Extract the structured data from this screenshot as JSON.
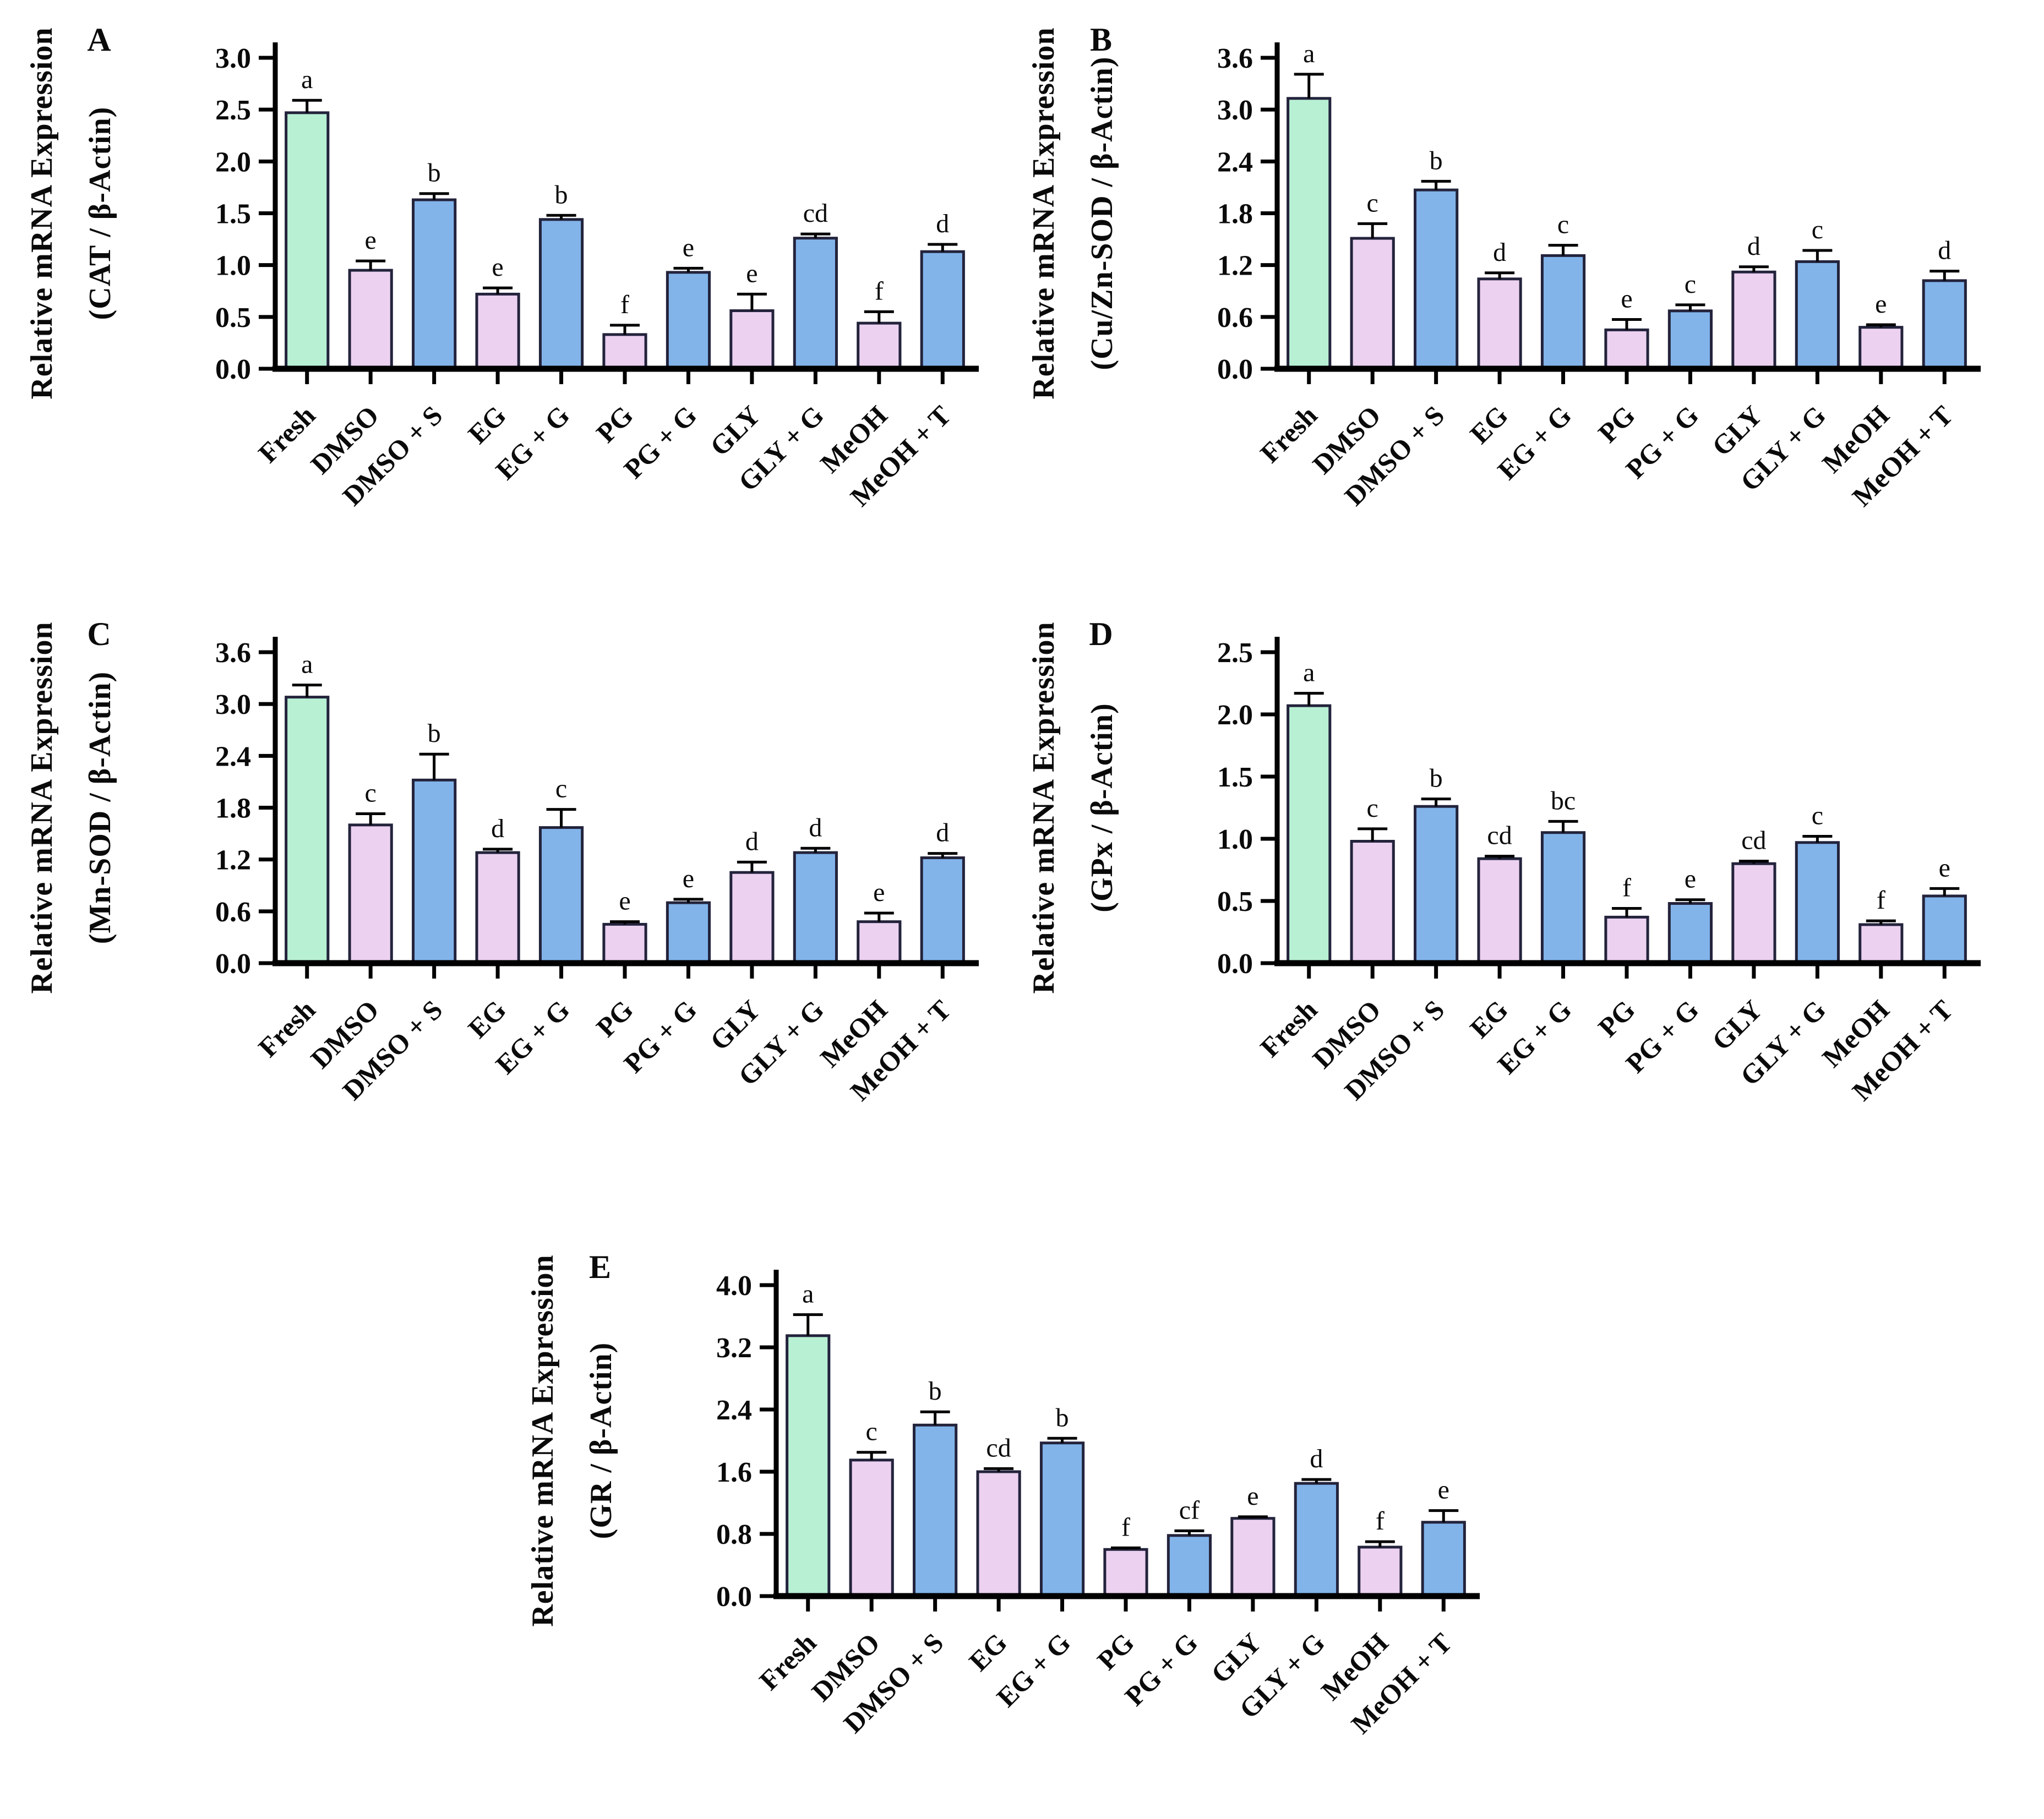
{
  "figure": {
    "palette": {
      "green": "#b8f0d4",
      "pink": "#ecd1f0",
      "blue": "#82b4ea",
      "outline": "#23233c",
      "axis": "#000000"
    },
    "categories": [
      "Fresh",
      "DMSO",
      "DMSO + S",
      "EG",
      "EG + G",
      "PG",
      "PG + G",
      "GLY",
      "GLY + G",
      "MeOH",
      "MeOH + T"
    ],
    "color_pattern": [
      "green",
      "pink",
      "blue",
      "pink",
      "blue",
      "pink",
      "blue",
      "pink",
      "blue",
      "pink",
      "blue"
    ]
  },
  "chart_data": [
    {
      "panel": "A",
      "type": "bar",
      "ylabel_line1": "Relative mRNA Expression",
      "ylabel_line2": "(CAT / β-Actin)",
      "categories": [
        "Fresh",
        "DMSO",
        "DMSO + S",
        "EG",
        "EG + G",
        "PG",
        "PG + G",
        "GLY",
        "GLY + G",
        "MeOH",
        "MeOH + T"
      ],
      "values": [
        2.47,
        0.95,
        1.63,
        0.72,
        1.44,
        0.33,
        0.93,
        0.56,
        1.26,
        0.44,
        1.13
      ],
      "errors": [
        0.12,
        0.09,
        0.06,
        0.06,
        0.04,
        0.09,
        0.04,
        0.16,
        0.04,
        0.11,
        0.07
      ],
      "letters": [
        "a",
        "e",
        "b",
        "e",
        "b",
        "f",
        "e",
        "e",
        "cd",
        "f",
        "d"
      ],
      "colors": [
        "green",
        "pink",
        "blue",
        "pink",
        "blue",
        "pink",
        "blue",
        "pink",
        "blue",
        "pink",
        "blue"
      ],
      "y_ticks": [
        "0.0",
        "0.5",
        "1.0",
        "1.5",
        "2.0",
        "2.5",
        "3.0"
      ],
      "ylim": [
        0,
        3.0
      ],
      "grid": false,
      "legend": "none"
    },
    {
      "panel": "B",
      "type": "bar",
      "ylabel_line1": "Relative mRNA Expression",
      "ylabel_line2": "(Cu/Zn-SOD / β-Actin)",
      "categories": [
        "Fresh",
        "DMSO",
        "DMSO + S",
        "EG",
        "EG + G",
        "PG",
        "PG + G",
        "GLY",
        "GLY + G",
        "MeOH",
        "MeOH + T"
      ],
      "values": [
        3.13,
        1.51,
        2.07,
        1.04,
        1.31,
        0.45,
        0.67,
        1.12,
        1.24,
        0.48,
        1.02
      ],
      "errors": [
        0.28,
        0.17,
        0.1,
        0.07,
        0.12,
        0.12,
        0.07,
        0.06,
        0.13,
        0.03,
        0.11
      ],
      "letters": [
        "a",
        "c",
        "b",
        "d",
        "c",
        "e",
        "c",
        "d",
        "c",
        "e",
        "d"
      ],
      "colors": [
        "green",
        "pink",
        "blue",
        "pink",
        "blue",
        "pink",
        "blue",
        "pink",
        "blue",
        "pink",
        "blue"
      ],
      "y_ticks": [
        "0.0",
        "0.6",
        "1.2",
        "1.8",
        "2.4",
        "3.0",
        "3.6"
      ],
      "ylim": [
        0,
        3.6
      ],
      "grid": false,
      "legend": "none"
    },
    {
      "panel": "C",
      "type": "bar",
      "ylabel_line1": "Relative mRNA Expression",
      "ylabel_line2": "(Mn-SOD / β-Actin)",
      "categories": [
        "Fresh",
        "DMSO",
        "DMSO + S",
        "EG",
        "EG + G",
        "PG",
        "PG + G",
        "GLY",
        "GLY + G",
        "MeOH",
        "MeOH + T"
      ],
      "values": [
        3.08,
        1.6,
        2.12,
        1.28,
        1.57,
        0.45,
        0.7,
        1.05,
        1.28,
        0.48,
        1.22
      ],
      "errors": [
        0.14,
        0.13,
        0.3,
        0.04,
        0.21,
        0.03,
        0.04,
        0.12,
        0.05,
        0.1,
        0.05
      ],
      "letters": [
        "a",
        "c",
        "b",
        "d",
        "c",
        "e",
        "e",
        "d",
        "d",
        "e",
        "d"
      ],
      "colors": [
        "green",
        "pink",
        "blue",
        "pink",
        "blue",
        "pink",
        "blue",
        "pink",
        "blue",
        "pink",
        "blue"
      ],
      "y_ticks": [
        "0.0",
        "0.6",
        "1.2",
        "1.8",
        "2.4",
        "3.0",
        "3.6"
      ],
      "ylim": [
        0,
        3.6
      ],
      "grid": false,
      "legend": "none"
    },
    {
      "panel": "D",
      "type": "bar",
      "ylabel_line1": "Relative mRNA Expression",
      "ylabel_line2": "(GPx / β-Actin)",
      "categories": [
        "Fresh",
        "DMSO",
        "DMSO + S",
        "EG",
        "EG + G",
        "PG",
        "PG + G",
        "GLY",
        "GLY + G",
        "MeOH",
        "MeOH + T"
      ],
      "values": [
        2.07,
        0.98,
        1.26,
        0.84,
        1.05,
        0.37,
        0.48,
        0.8,
        0.97,
        0.31,
        0.54
      ],
      "errors": [
        0.1,
        0.1,
        0.06,
        0.02,
        0.09,
        0.07,
        0.03,
        0.02,
        0.05,
        0.03,
        0.06
      ],
      "letters": [
        "a",
        "c",
        "b",
        "cd",
        "bc",
        "f",
        "e",
        "cd",
        "c",
        "f",
        "e"
      ],
      "colors": [
        "green",
        "pink",
        "blue",
        "pink",
        "blue",
        "pink",
        "blue",
        "pink",
        "blue",
        "pink",
        "blue"
      ],
      "y_ticks": [
        "0.0",
        "0.5",
        "1.0",
        "1.5",
        "2.0",
        "2.5"
      ],
      "ylim": [
        0,
        2.5
      ],
      "grid": false,
      "legend": "none"
    },
    {
      "panel": "E",
      "type": "bar",
      "ylabel_line1": "Relative mRNA Expression",
      "ylabel_line2": "(GR / β-Actin)",
      "categories": [
        "Fresh",
        "DMSO",
        "DMSO + S",
        "EG",
        "EG + G",
        "PG",
        "PG + G",
        "GLY",
        "GLY + G",
        "MeOH",
        "MeOH + T"
      ],
      "values": [
        3.35,
        1.75,
        2.2,
        1.6,
        1.97,
        0.6,
        0.78,
        1.0,
        1.45,
        0.63,
        0.95
      ],
      "errors": [
        0.27,
        0.1,
        0.17,
        0.04,
        0.06,
        0.02,
        0.06,
        0.02,
        0.05,
        0.07,
        0.15
      ],
      "letters": [
        "a",
        "c",
        "b",
        "cd",
        "b",
        "f",
        "cf",
        "e",
        "d",
        "f",
        "e"
      ],
      "colors": [
        "green",
        "pink",
        "blue",
        "pink",
        "blue",
        "pink",
        "blue",
        "pink",
        "blue",
        "pink",
        "blue"
      ],
      "y_ticks": [
        "0.0",
        "0.8",
        "1.6",
        "2.4",
        "3.2",
        "4.0"
      ],
      "ylim": [
        0,
        4.0
      ],
      "grid": false,
      "legend": "none"
    }
  ]
}
